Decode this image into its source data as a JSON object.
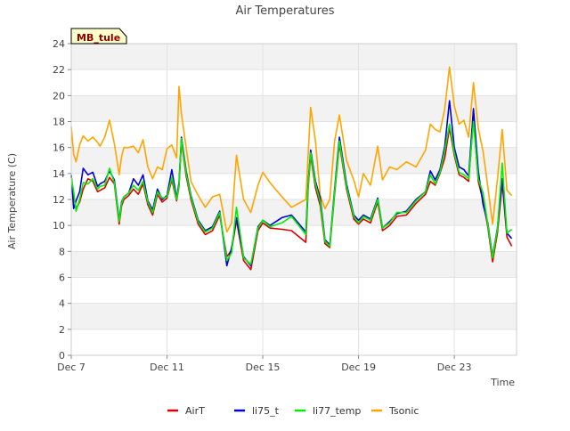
{
  "chart_data": {
    "type": "line",
    "title": "Air Temperatures",
    "xlabel": "Time",
    "ylabel": "Air Temperature (C)",
    "site_label": "MB_tule",
    "x_unit": "date",
    "x_range": [
      "Dec 7",
      "Dec 25.6"
    ],
    "ylim": [
      0,
      24
    ],
    "y_ticks": [
      0,
      2,
      4,
      6,
      8,
      10,
      12,
      14,
      16,
      18,
      20,
      22,
      24
    ],
    "x_tick_labels": [
      "Dec 7",
      "Dec 11",
      "Dec 15",
      "Dec 19",
      "Dec 23"
    ],
    "grid": true,
    "legend_position": "bottom",
    "series": [
      {
        "name": "AirT",
        "color": "#dd0000",
        "x": [
          7.0,
          7.1,
          7.2,
          7.35,
          7.5,
          7.7,
          7.9,
          8.1,
          8.2,
          8.4,
          8.6,
          8.8,
          9.0,
          9.1,
          9.2,
          9.4,
          9.6,
          9.8,
          10.0,
          10.2,
          10.4,
          10.6,
          10.8,
          11.0,
          11.2,
          11.4,
          11.5,
          11.6,
          11.8,
          12.0,
          12.3,
          12.6,
          12.9,
          13.2,
          13.5,
          13.7,
          13.9,
          14.2,
          14.5,
          14.8,
          15.0,
          15.3,
          15.8,
          16.2,
          16.8,
          16.9,
          17.0,
          17.2,
          17.4,
          17.6,
          17.8,
          18.0,
          18.2,
          18.5,
          18.8,
          19.0,
          19.2,
          19.5,
          19.8,
          20.0,
          20.3,
          20.6,
          21.0,
          21.4,
          21.8,
          22.0,
          22.2,
          22.4,
          22.6,
          22.8,
          23.0,
          23.2,
          23.4,
          23.6,
          23.8,
          24.0,
          24.2,
          24.4,
          24.6,
          24.8,
          25.0,
          25.2,
          25.4
        ],
        "values": [
          13.8,
          12.2,
          11.3,
          11.8,
          12.8,
          13.6,
          13.4,
          12.6,
          12.7,
          12.9,
          13.7,
          13.2,
          10.1,
          11.5,
          12.0,
          12.3,
          12.8,
          12.4,
          13.2,
          11.6,
          10.8,
          12.4,
          11.8,
          12.1,
          13.5,
          11.9,
          13.0,
          16.5,
          13.8,
          12.0,
          10.1,
          9.3,
          9.6,
          10.8,
          7.6,
          8.1,
          10.4,
          7.3,
          6.6,
          9.6,
          10.2,
          9.8,
          9.7,
          9.6,
          8.7,
          13.0,
          15.4,
          12.9,
          11.5,
          8.6,
          8.3,
          12.4,
          16.3,
          12.8,
          10.5,
          10.1,
          10.5,
          10.2,
          11.8,
          9.6,
          10.0,
          10.7,
          10.8,
          11.7,
          12.4,
          13.4,
          13.1,
          14.0,
          15.2,
          17.5,
          15.4,
          13.9,
          13.7,
          13.4,
          18.3,
          13.4,
          11.9,
          9.9,
          7.2,
          9.4,
          13.3,
          9.1,
          8.4
        ]
      },
      {
        "name": "li75_t",
        "color": "#0000dd",
        "x": [
          7.0,
          7.1,
          7.2,
          7.35,
          7.5,
          7.7,
          7.9,
          8.1,
          8.2,
          8.4,
          8.6,
          8.8,
          9.0,
          9.1,
          9.2,
          9.4,
          9.6,
          9.8,
          10.0,
          10.2,
          10.4,
          10.6,
          10.8,
          11.0,
          11.2,
          11.4,
          11.5,
          11.6,
          11.8,
          12.0,
          12.3,
          12.6,
          12.9,
          13.2,
          13.5,
          13.7,
          13.9,
          14.2,
          14.5,
          14.8,
          15.0,
          15.3,
          15.8,
          16.2,
          16.8,
          16.9,
          17.0,
          17.2,
          17.4,
          17.6,
          17.8,
          18.0,
          18.2,
          18.5,
          18.8,
          19.0,
          19.2,
          19.5,
          19.8,
          20.0,
          20.3,
          20.6,
          21.0,
          21.4,
          21.8,
          22.0,
          22.2,
          22.4,
          22.6,
          22.8,
          23.0,
          23.2,
          23.4,
          23.6,
          23.8,
          24.0,
          24.2,
          24.4,
          24.6,
          24.8,
          25.0,
          25.2,
          25.4
        ],
        "values": [
          13.9,
          11.3,
          11.9,
          12.6,
          14.4,
          13.9,
          14.1,
          13.0,
          13.2,
          13.4,
          14.2,
          13.5,
          10.4,
          11.8,
          12.2,
          12.5,
          13.6,
          13.1,
          13.9,
          11.9,
          11.2,
          12.8,
          12.0,
          12.3,
          14.3,
          12.1,
          13.3,
          16.8,
          14.2,
          12.3,
          10.4,
          9.6,
          9.9,
          11.1,
          6.9,
          8.3,
          10.6,
          7.6,
          6.9,
          9.9,
          10.4,
          10.0,
          10.6,
          10.8,
          9.5,
          13.4,
          15.8,
          13.4,
          12.1,
          8.9,
          8.5,
          12.8,
          16.8,
          13.2,
          10.8,
          10.4,
          10.8,
          10.5,
          12.1,
          9.8,
          10.3,
          10.9,
          11.1,
          12.0,
          12.6,
          14.2,
          13.5,
          14.3,
          16.1,
          19.6,
          16.0,
          14.5,
          14.3,
          13.8,
          19.0,
          14.2,
          11.6,
          10.2,
          7.6,
          9.8,
          13.6,
          9.4,
          9.0
        ]
      },
      {
        "name": "li77_temp",
        "color": "#00ee00",
        "x": [
          7.0,
          7.1,
          7.2,
          7.35,
          7.5,
          7.7,
          7.9,
          8.1,
          8.2,
          8.4,
          8.6,
          8.8,
          9.0,
          9.1,
          9.2,
          9.4,
          9.6,
          9.8,
          10.0,
          10.2,
          10.4,
          10.6,
          10.8,
          11.0,
          11.2,
          11.4,
          11.5,
          11.6,
          11.8,
          12.0,
          12.3,
          12.6,
          12.9,
          13.2,
          13.5,
          13.7,
          13.9,
          14.2,
          14.5,
          14.8,
          15.0,
          15.3,
          15.8,
          16.2,
          16.8,
          16.9,
          17.0,
          17.2,
          17.4,
          17.6,
          17.8,
          18.0,
          18.2,
          18.5,
          18.8,
          19.0,
          19.2,
          19.5,
          19.8,
          20.0,
          20.3,
          20.6,
          21.0,
          21.4,
          21.8,
          22.0,
          22.2,
          22.4,
          22.6,
          22.8,
          23.0,
          23.2,
          23.4,
          23.6,
          23.8,
          24.0,
          24.2,
          24.4,
          24.6,
          24.8,
          25.0,
          25.2,
          25.4
        ],
        "values": [
          13.7,
          12.6,
          11.1,
          12.0,
          13.3,
          13.2,
          13.6,
          12.8,
          13.0,
          13.1,
          14.4,
          13.3,
          10.3,
          11.7,
          12.2,
          12.5,
          13.1,
          12.7,
          13.4,
          11.8,
          11.0,
          12.6,
          12.1,
          12.2,
          13.7,
          12.0,
          13.1,
          16.7,
          14.0,
          12.2,
          10.3,
          9.5,
          9.8,
          11.0,
          7.3,
          7.9,
          11.4,
          7.5,
          7.0,
          9.8,
          10.4,
          9.9,
          10.2,
          10.7,
          9.3,
          13.2,
          15.6,
          13.2,
          11.8,
          8.8,
          8.4,
          12.6,
          16.5,
          13.0,
          10.7,
          10.2,
          10.7,
          10.4,
          12.0,
          9.8,
          10.2,
          11.0,
          11.0,
          11.9,
          12.6,
          13.9,
          13.2,
          14.1,
          15.8,
          17.8,
          15.6,
          14.1,
          13.9,
          13.6,
          18.0,
          13.6,
          12.5,
          10.1,
          7.5,
          9.7,
          14.8,
          9.4,
          9.7
        ]
      },
      {
        "name": "Tsonic",
        "color": "#ffa500",
        "x": [
          7.0,
          7.1,
          7.2,
          7.35,
          7.5,
          7.7,
          7.9,
          8.1,
          8.2,
          8.4,
          8.6,
          8.8,
          9.0,
          9.1,
          9.2,
          9.4,
          9.6,
          9.8,
          10.0,
          10.2,
          10.4,
          10.6,
          10.8,
          11.0,
          11.2,
          11.4,
          11.5,
          11.6,
          11.8,
          12.0,
          12.3,
          12.6,
          12.9,
          13.2,
          13.5,
          13.7,
          13.9,
          14.2,
          14.5,
          14.8,
          15.0,
          15.3,
          15.8,
          16.2,
          16.8,
          16.9,
          17.0,
          17.2,
          17.4,
          17.6,
          17.8,
          18.0,
          18.2,
          18.5,
          18.8,
          19.0,
          19.2,
          19.5,
          19.8,
          20.0,
          20.3,
          20.6,
          21.0,
          21.4,
          21.8,
          22.0,
          22.2,
          22.4,
          22.6,
          22.8,
          23.0,
          23.2,
          23.4,
          23.6,
          23.8,
          24.0,
          24.2,
          24.4,
          24.6,
          24.8,
          25.0,
          25.2,
          25.4
        ],
        "values": [
          17.6,
          15.5,
          14.9,
          16.2,
          16.9,
          16.5,
          16.8,
          16.4,
          16.1,
          16.8,
          18.1,
          16.3,
          13.9,
          15.3,
          16.0,
          16.0,
          16.1,
          15.6,
          16.6,
          14.5,
          13.6,
          14.5,
          14.3,
          15.9,
          16.2,
          15.2,
          20.7,
          18.6,
          16.0,
          13.4,
          12.3,
          11.4,
          12.2,
          12.4,
          9.5,
          10.2,
          15.4,
          12.0,
          11.0,
          13.1,
          14.1,
          13.3,
          12.2,
          11.4,
          12.0,
          15.6,
          19.1,
          16.5,
          12.3,
          11.3,
          12.0,
          16.5,
          18.5,
          15.0,
          13.5,
          12.2,
          14.0,
          13.1,
          16.1,
          13.5,
          14.5,
          14.3,
          14.9,
          14.5,
          15.8,
          17.8,
          17.4,
          17.2,
          19.0,
          22.2,
          19.2,
          17.8,
          18.1,
          16.8,
          21.0,
          17.5,
          15.7,
          13.0,
          10.1,
          13.5,
          17.4,
          12.7,
          12.3
        ]
      }
    ]
  }
}
